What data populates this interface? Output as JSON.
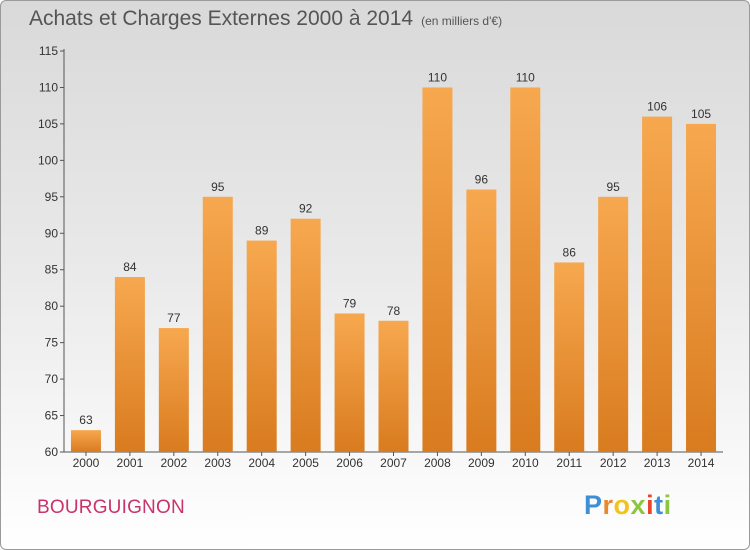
{
  "header": {
    "title": "Achats et Charges Externes 2000 à 2014",
    "subtitle": "(en milliers d'€)"
  },
  "footer": {
    "commune": "BOURGUIGNON",
    "logo_letters": [
      "P",
      "r",
      "o",
      "x",
      "i",
      "t",
      "i"
    ]
  },
  "colors": {
    "bar_top": "#f7a84f",
    "bar_bottom": "#d97b1f",
    "commune_text": "#c8336c",
    "logo": [
      "#3f8fd6",
      "#e8892b",
      "#f2c31b",
      "#8cc63f",
      "#e8452c",
      "#3f8fd6",
      "#8cc63f"
    ]
  },
  "chart_data": {
    "type": "bar",
    "title": "Achats et Charges Externes 2000 à 2014",
    "subtitle": "(en milliers d'€)",
    "categories": [
      "2000",
      "2001",
      "2002",
      "2003",
      "2004",
      "2005",
      "2006",
      "2007",
      "2008",
      "2009",
      "2010",
      "2011",
      "2012",
      "2013",
      "2014"
    ],
    "values": [
      63,
      84,
      77,
      95,
      89,
      92,
      79,
      78,
      110,
      96,
      110,
      86,
      95,
      106,
      105
    ],
    "ylim": [
      60,
      115
    ],
    "yticks": [
      60,
      65,
      70,
      75,
      80,
      85,
      90,
      95,
      100,
      105,
      110,
      115
    ],
    "grid": false,
    "legend": "none",
    "data_labels": true
  }
}
